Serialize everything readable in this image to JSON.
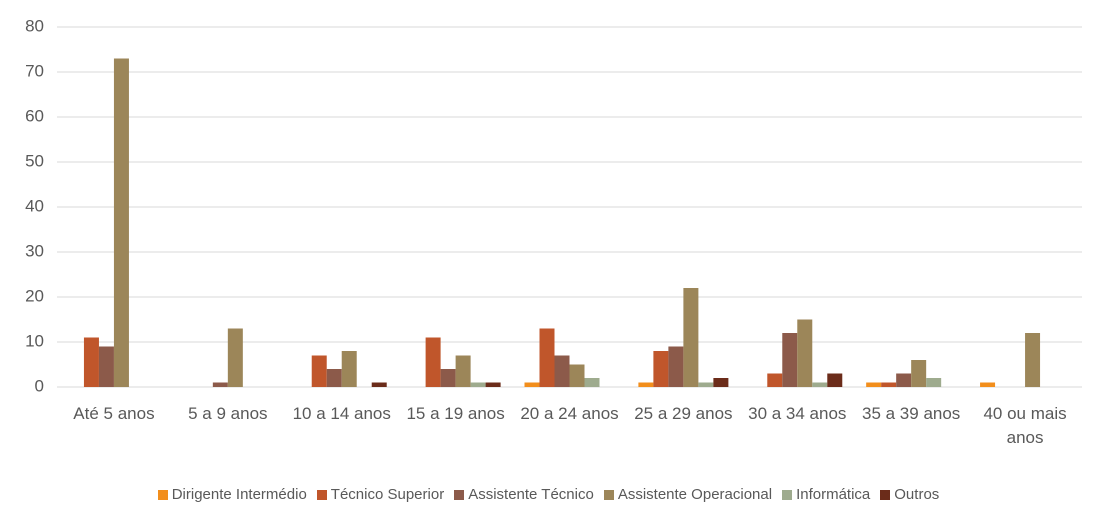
{
  "chart_data": {
    "type": "bar",
    "categories": [
      "Até 5 anos",
      "5 a 9 anos",
      "10 a 14 anos",
      "15 a 19 anos",
      "20 a 24 anos",
      "25 a 29 anos",
      "30 a 34 anos",
      "35 a 39 anos",
      "40 ou mais anos"
    ],
    "series": [
      {
        "name": "Dirigente Intermédio",
        "color": "#f28e1c",
        "values": [
          0,
          0,
          0,
          0,
          1,
          1,
          0,
          1,
          1
        ]
      },
      {
        "name": "Técnico Superior",
        "color": "#c0562b",
        "values": [
          11,
          0,
          7,
          11,
          13,
          8,
          3,
          1,
          0
        ]
      },
      {
        "name": "Assistente Técnico",
        "color": "#8c5a4a",
        "values": [
          9,
          1,
          4,
          4,
          7,
          9,
          12,
          3,
          0
        ]
      },
      {
        "name": "Assistente Operacional",
        "color": "#9c8659",
        "values": [
          73,
          13,
          8,
          7,
          5,
          22,
          15,
          6,
          12
        ]
      },
      {
        "name": "Informática",
        "color": "#9eab8e",
        "values": [
          0,
          0,
          0,
          1,
          2,
          1,
          1,
          2,
          0
        ]
      },
      {
        "name": "Outros",
        "color": "#6b2c1a",
        "values": [
          0,
          0,
          1,
          1,
          0,
          2,
          3,
          0,
          0
        ]
      }
    ],
    "ylim": [
      0,
      80
    ],
    "yticks": [
      0,
      10,
      20,
      30,
      40,
      50,
      60,
      70,
      80
    ],
    "grid": true,
    "legend": "bottom"
  }
}
